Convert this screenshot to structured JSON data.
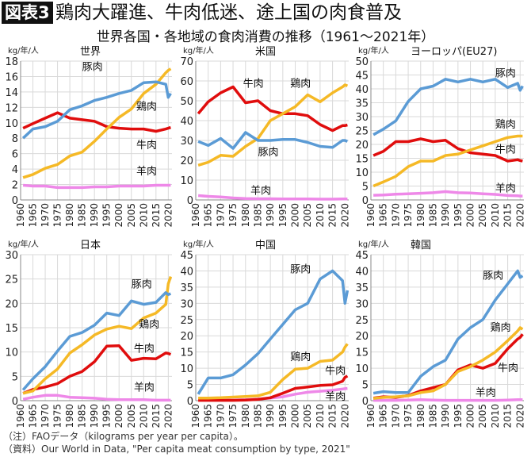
{
  "header": {
    "badge": "図表3",
    "title": "鶏肉大躍進、牛肉低迷、途上国の肉食普及",
    "subtitle": "世界各国・各地域の食肉消費の推移（1961〜2021年）"
  },
  "notes": {
    "note1": "（注）FAOデータ（kilograms per year per capita）。",
    "source": "（資料）Our World in Data, \"Per capita meat consumption by type, 2021\""
  },
  "colors": {
    "豚肉": "#5b9bd5",
    "鶏肉": "#f5b926",
    "牛肉": "#e00d0d",
    "羊肉": "#ee88e8"
  },
  "chart_data": [
    {
      "type": "line",
      "title": "世界",
      "ylabel": "kg/年/人",
      "ylim": [
        0,
        18
      ],
      "yticks": [
        0,
        2,
        4,
        6,
        8,
        10,
        12,
        14,
        16,
        18
      ],
      "xticks": [
        1960,
        1965,
        1970,
        1975,
        1980,
        1985,
        1990,
        1995,
        2000,
        2005,
        2010,
        2015,
        2020
      ],
      "grid": true,
      "x": [
        1961,
        1965,
        1970,
        1975,
        1980,
        1985,
        1990,
        1995,
        2000,
        2005,
        2010,
        2015,
        2019,
        2020,
        2021
      ],
      "series": [
        {
          "name": "豚肉",
          "values": [
            8,
            9.2,
            9.5,
            10.2,
            11.7,
            12.2,
            12.9,
            13.3,
            13.8,
            14.2,
            15.2,
            15.3,
            15.0,
            13.3,
            13.8
          ],
          "label_at": [
            1985,
            16.8
          ]
        },
        {
          "name": "鶏肉",
          "values": [
            2.9,
            3.3,
            4.1,
            4.6,
            5.7,
            6.2,
            7.6,
            9.2,
            10.7,
            11.8,
            13.8,
            15.0,
            16.5,
            16.8,
            17
          ],
          "label_at": [
            2007,
            11.7
          ]
        },
        {
          "name": "牛肉",
          "values": [
            9.3,
            9.9,
            10.6,
            11.3,
            10.6,
            10.4,
            10.2,
            9.5,
            9.3,
            9.2,
            9.2,
            8.9,
            9.2,
            9.3,
            9.4
          ],
          "label_at": [
            2007,
            6.7
          ]
        },
        {
          "name": "羊肉",
          "values": [
            1.9,
            1.8,
            1.8,
            1.6,
            1.6,
            1.6,
            1.7,
            1.7,
            1.8,
            1.8,
            1.8,
            1.9,
            1.9,
            1.9,
            1.9
          ],
          "label_at": [
            2007,
            3.3
          ]
        }
      ]
    },
    {
      "type": "line",
      "title": "米国",
      "ylabel": "kg/年/人",
      "ylim": [
        0,
        70
      ],
      "yticks": [
        0,
        10,
        20,
        30,
        40,
        50,
        60,
        70
      ],
      "xticks": [
        1960,
        1965,
        1970,
        1975,
        1980,
        1985,
        1990,
        1995,
        2000,
        2005,
        2010,
        2015,
        2020
      ],
      "grid": true,
      "x": [
        1961,
        1965,
        1970,
        1975,
        1980,
        1985,
        1990,
        1995,
        2000,
        2005,
        2010,
        2015,
        2019,
        2020,
        2021
      ],
      "series": [
        {
          "name": "豚肉",
          "values": [
            29.5,
            27.5,
            31,
            26,
            34,
            30,
            30,
            30.5,
            30.5,
            29,
            27,
            26.5,
            30,
            30,
            29.5
          ],
          "label_at": [
            1985,
            22.5
          ]
        },
        {
          "name": "鶏肉",
          "values": [
            17.5,
            19,
            22.5,
            22,
            27,
            31,
            40,
            43.5,
            47,
            53,
            49.5,
            54,
            57,
            58,
            57.5
          ],
          "label_at": [
            1998,
            57
          ]
        },
        {
          "name": "牛肉",
          "values": [
            43.5,
            49.5,
            54,
            57,
            49,
            50,
            45,
            43.5,
            43.5,
            42.5,
            38,
            35,
            37.5,
            37.5,
            37.8
          ],
          "label_at": [
            1979,
            57
          ]
        },
        {
          "name": "羊肉",
          "values": [
            2.2,
            1.8,
            1.5,
            1.0,
            0.7,
            0.6,
            0.6,
            0.5,
            0.5,
            0.5,
            0.4,
            0.4,
            0.5,
            0.5,
            0.5
          ],
          "label_at": [
            1982,
            3
          ]
        }
      ]
    },
    {
      "type": "line",
      "title": "ヨーロッパ(EU27)",
      "ylabel": "kg/年/人",
      "ylim": [
        0,
        50
      ],
      "yticks": [
        0,
        5,
        10,
        15,
        20,
        25,
        30,
        35,
        40,
        45,
        50
      ],
      "xticks": [
        1960,
        1965,
        1970,
        1975,
        1980,
        1985,
        1990,
        1995,
        2000,
        2005,
        2010,
        2015,
        2020
      ],
      "grid": true,
      "x": [
        1961,
        1965,
        1970,
        1975,
        1980,
        1985,
        1990,
        1995,
        2000,
        2005,
        2010,
        2015,
        2019,
        2020,
        2021
      ],
      "series": [
        {
          "name": "豚肉",
          "values": [
            23.5,
            25.5,
            28.5,
            35.5,
            40,
            41,
            43.5,
            42.5,
            43.5,
            42.5,
            43.5,
            40.5,
            42,
            39.5,
            41
          ],
          "label_at": [
            2010,
            44.5
          ]
        },
        {
          "name": "鶏肉",
          "values": [
            5,
            6.5,
            8.5,
            12,
            14,
            14,
            16,
            16.5,
            18,
            19.5,
            21,
            22.5,
            23,
            23,
            23
          ],
          "label_at": [
            2010,
            26
          ]
        },
        {
          "name": "牛肉",
          "values": [
            16,
            17.5,
            21,
            21,
            22,
            21,
            21.5,
            18.5,
            17,
            16.5,
            16,
            14,
            14.5,
            14.2,
            14
          ],
          "label_at": [
            2010,
            17
          ]
        },
        {
          "name": "羊肉",
          "values": [
            1.7,
            1.8,
            2.1,
            2.2,
            2.4,
            2.6,
            3.0,
            2.6,
            2.5,
            2.2,
            2.0,
            1.6,
            1.5,
            1.4,
            1.4
          ],
          "label_at": [
            2010,
            3
          ]
        }
      ]
    },
    {
      "type": "line",
      "title": "日本",
      "ylabel": "kg/年/人",
      "ylim": [
        0,
        30
      ],
      "yticks": [
        0,
        5,
        10,
        15,
        20,
        25,
        30
      ],
      "xticks": [
        1960,
        1965,
        1970,
        1975,
        1980,
        1985,
        1990,
        1995,
        2000,
        2005,
        2010,
        2015,
        2020
      ],
      "grid": true,
      "x": [
        1961,
        1965,
        1970,
        1975,
        1980,
        1985,
        1990,
        1995,
        2000,
        2005,
        2010,
        2015,
        2019,
        2020,
        2021
      ],
      "series": [
        {
          "name": "豚肉",
          "values": [
            2.2,
            4.5,
            7,
            10.2,
            13.2,
            14,
            15.5,
            18,
            17.5,
            20.5,
            19.8,
            20.2,
            22.2,
            21.8,
            22
          ],
          "label_at": [
            2005,
            23.2
          ]
        },
        {
          "name": "鶏肉",
          "values": [
            1.5,
            2.0,
            4.5,
            6.5,
            9.8,
            11.5,
            13.5,
            14.7,
            15.3,
            14.8,
            17,
            18,
            19.8,
            24,
            25.5
          ],
          "label_at": [
            2008,
            15
          ]
        },
        {
          "name": "牛肉",
          "values": [
            1.5,
            2.3,
            2.8,
            3.5,
            5.0,
            6.0,
            8.0,
            11.2,
            11.3,
            8.3,
            8.7,
            8.6,
            9.8,
            9.7,
            9.5
          ],
          "label_at": [
            2006,
            10
          ]
        },
        {
          "name": "羊肉",
          "values": [
            0.3,
            0.7,
            1.1,
            1.1,
            0.7,
            0.6,
            0.5,
            0.3,
            0.2,
            0.2,
            0.2,
            0.1,
            0.1,
            0.1,
            0.1
          ],
          "label_at": [
            2006,
            2
          ]
        }
      ]
    },
    {
      "type": "line",
      "title": "中国",
      "ylabel": "kg/年/人",
      "ylim": [
        0,
        45
      ],
      "yticks": [
        0,
        5,
        10,
        15,
        20,
        25,
        30,
        35,
        40,
        45
      ],
      "xticks": [
        1960,
        1965,
        1970,
        1975,
        1980,
        1985,
        1990,
        1995,
        2000,
        2005,
        2010,
        2015,
        2020
      ],
      "grid": true,
      "x": [
        1961,
        1965,
        1970,
        1975,
        1980,
        1985,
        1990,
        1995,
        2000,
        2005,
        2010,
        2015,
        2019,
        2020,
        2021
      ],
      "series": [
        {
          "name": "豚肉",
          "values": [
            2,
            7,
            7,
            8,
            11,
            14.5,
            19,
            23.5,
            28,
            30,
            37.5,
            40,
            37,
            30,
            34
          ],
          "label_at": [
            1998,
            39.5
          ]
        },
        {
          "name": "鶏肉",
          "values": [
            0.8,
            0.8,
            0.9,
            1.1,
            1.3,
            1.5,
            2.6,
            6.5,
            9.7,
            10,
            12.1,
            12.5,
            15,
            16.5,
            17.5
          ],
          "label_at": [
            1998,
            12.5
          ]
        },
        {
          "name": "牛肉",
          "values": [
            0.1,
            0.1,
            0.1,
            0.1,
            0.2,
            0.4,
            0.9,
            2.3,
            3.8,
            4.2,
            4.7,
            4.9,
            6,
            7.2,
            7.6
          ],
          "label_at": [
            2012,
            8.2
          ]
        },
        {
          "name": "羊肉",
          "values": [
            0.2,
            0.2,
            0.2,
            0.2,
            0.3,
            0.5,
            0.8,
            1.2,
            2,
            2.6,
            2.9,
            3.2,
            3.6,
            3.7,
            3.8
          ],
          "label_at": [
            2012,
            0.3
          ]
        }
      ]
    },
    {
      "type": "line",
      "title": "韓国",
      "ylabel": "kg/年/人",
      "ylim": [
        0,
        45
      ],
      "yticks": [
        0,
        5,
        10,
        15,
        20,
        25,
        30,
        35,
        40,
        45
      ],
      "xticks": [
        1960,
        1965,
        1970,
        1975,
        1980,
        1985,
        1990,
        1995,
        2000,
        2005,
        2010,
        2015,
        2020
      ],
      "grid": true,
      "x": [
        1961,
        1965,
        1970,
        1975,
        1980,
        1985,
        1990,
        1995,
        2000,
        2005,
        2010,
        2015,
        2019,
        2020,
        2021
      ],
      "series": [
        {
          "name": "豚肉",
          "values": [
            2.3,
            2.8,
            2.5,
            2.5,
            7.5,
            10.5,
            12.5,
            19,
            22.5,
            25,
            31,
            36,
            40,
            38,
            38.5
          ],
          "label_at": [
            2005,
            37.5
          ]
        },
        {
          "name": "鶏肉",
          "values": [
            0.7,
            1,
            1.2,
            1.5,
            2.5,
            3,
            5,
            9,
            10.5,
            12.5,
            15,
            18.5,
            21.5,
            22.5,
            22
          ],
          "label_at": [
            2008,
            21.5
          ]
        },
        {
          "name": "牛肉",
          "values": [
            0.8,
            1.2,
            1.0,
            1.6,
            3,
            4,
            5,
            9.5,
            11,
            10,
            11.5,
            16,
            19,
            19.5,
            20.5
          ],
          "label_at": [
            2011,
            9
          ]
        },
        {
          "name": "羊肉",
          "values": [
            0.1,
            0.1,
            0.1,
            0.2,
            0.3,
            0.2,
            0.1,
            0.1,
            0.1,
            0.1,
            0.1,
            0.2,
            0.3,
            0.3,
            0.3
          ],
          "label_at": [
            2002,
            1.5
          ]
        }
      ]
    }
  ]
}
